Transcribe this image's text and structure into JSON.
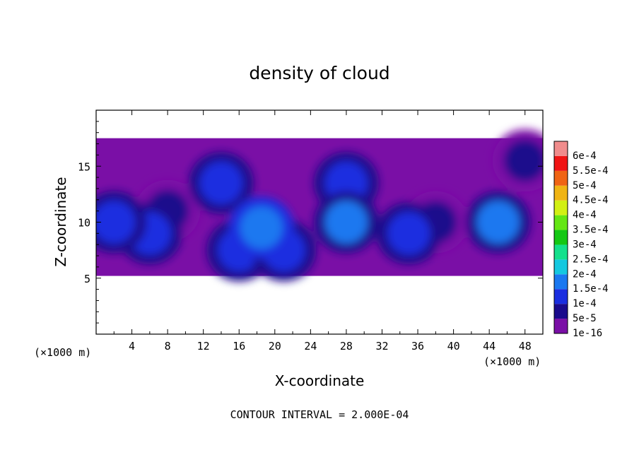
{
  "chart_data": {
    "type": "heatmap",
    "title": "density of cloud",
    "xlabel": "X-coordinate",
    "ylabel": "Z-coordinate",
    "x_unit": "(×1000 m)",
    "y_unit": "(×1000 m)",
    "xlim": [
      0,
      50
    ],
    "ylim": [
      0,
      20
    ],
    "x_ticks": [
      4,
      8,
      12,
      16,
      20,
      24,
      28,
      32,
      36,
      40,
      44,
      48
    ],
    "y_ticks": [
      5,
      10,
      15
    ],
    "footer": "CONTOUR INTERVAL = 2.000E-04",
    "colorbar": {
      "levels": [
        {
          "label": "1e-16",
          "value": 1e-16,
          "color": "#7a0fa6"
        },
        {
          "label": "5e-5",
          "value": 5e-05,
          "color": "#1a0b8c"
        },
        {
          "label": "1e-4",
          "value": 0.0001,
          "color": "#1a2ee0"
        },
        {
          "label": "1.5e-4",
          "value": 0.00015,
          "color": "#1a78f0"
        },
        {
          "label": "2e-4",
          "value": 0.0002,
          "color": "#14c8e0"
        },
        {
          "label": "2.5e-4",
          "value": 0.00025,
          "color": "#14e08c"
        },
        {
          "label": "3e-4",
          "value": 0.0003,
          "color": "#14c814"
        },
        {
          "label": "3.5e-4",
          "value": 0.00035,
          "color": "#64e614"
        },
        {
          "label": "4e-4",
          "value": 0.0004,
          "color": "#d2f014"
        },
        {
          "label": "4.5e-4",
          "value": 0.00045,
          "color": "#f0b414"
        },
        {
          "label": "5e-4",
          "value": 0.0005,
          "color": "#f06414"
        },
        {
          "label": "5.5e-4",
          "value": 0.00055,
          "color": "#f01414"
        },
        {
          "label": "6e-4",
          "value": 0.0006,
          "color": "#f08c8c"
        }
      ]
    },
    "cloud_layer": {
      "z_bottom": 5.2,
      "z_top": 17.5
    },
    "cells": [
      {
        "x": 2,
        "z": 10,
        "value": 0.00011
      },
      {
        "x": 6,
        "z": 9,
        "value": 0.0001
      },
      {
        "x": 8,
        "z": 11,
        "value": 8e-05
      },
      {
        "x": 14,
        "z": 13.5,
        "value": 0.0001
      },
      {
        "x": 18.5,
        "z": 9.5,
        "value": 0.00019
      },
      {
        "x": 16,
        "z": 7.5,
        "value": 0.00013
      },
      {
        "x": 21,
        "z": 7.5,
        "value": 0.00013
      },
      {
        "x": 28,
        "z": 10,
        "value": 0.00018
      },
      {
        "x": 28,
        "z": 13.5,
        "value": 0.00011
      },
      {
        "x": 35,
        "z": 9,
        "value": 0.00011
      },
      {
        "x": 38,
        "z": 10,
        "value": 9e-05
      },
      {
        "x": 45,
        "z": 10,
        "value": 0.00015
      },
      {
        "x": 48,
        "z": 15.5,
        "value": 6e-05
      }
    ]
  }
}
